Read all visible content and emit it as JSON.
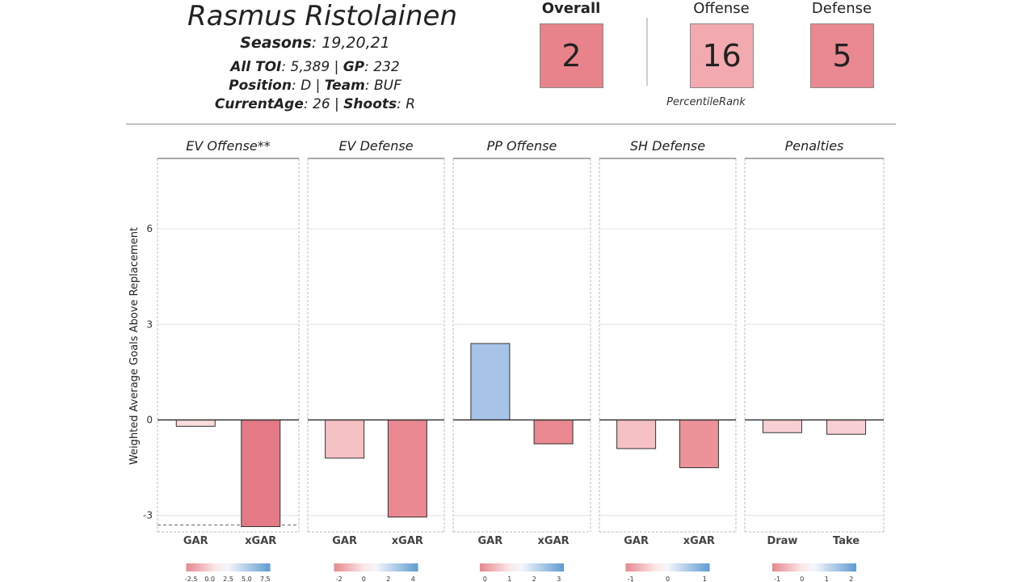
{
  "player": {
    "name": "Rasmus Ristolainen",
    "seasons_label": "Seasons",
    "seasons": ": 19,20,21",
    "toi_label": "All TOI",
    "toi": ": 5,389 | ",
    "gp_label": "GP",
    "gp": ": 232",
    "position_label": "Position",
    "position": ": D | ",
    "team_label": "Team",
    "team": ": BUF",
    "age_label": "CurrentAge",
    "age": ": 26 | ",
    "shoots_label": "Shoots",
    "shoots": ": R"
  },
  "ranks": {
    "overall_label": "Overall",
    "overall": "2",
    "overall_color": "#e8838c",
    "offense_label": "Offense",
    "offense": "16",
    "offense_color": "#f2aab0",
    "defense_label": "Defense",
    "defense": "5",
    "defense_color": "#e98890",
    "percentile_label": "PercentileRank"
  },
  "chart_data": {
    "type": "bar",
    "ylabel": "Weighted Average Goals Above Replacement",
    "ylim": [
      -3.5,
      8
    ],
    "yticks": [
      6,
      3,
      0,
      -3
    ],
    "grid": true,
    "panels": [
      {
        "title": "EV Offense**",
        "categories": [
          "GAR",
          "xGAR"
        ],
        "values": [
          -0.2,
          -3.35
        ],
        "colors": [
          "#f9dcdc",
          "#e37a85"
        ],
        "legend_ticks": [
          "-2.5",
          "0.0",
          "2.5",
          "5.0",
          "7.5"
        ],
        "reference_line": -3.3
      },
      {
        "title": "EV Defense",
        "categories": [
          "GAR",
          "xGAR"
        ],
        "values": [
          -1.2,
          -3.05
        ],
        "colors": [
          "#f5c1c5",
          "#e98890"
        ],
        "legend_ticks": [
          "-2",
          "0",
          "2",
          "4"
        ]
      },
      {
        "title": "PP Offense",
        "categories": [
          "GAR",
          "xGAR"
        ],
        "values": [
          2.4,
          -0.75
        ],
        "colors": [
          "#a7c3e7",
          "#e98890"
        ],
        "legend_ticks": [
          "0",
          "1",
          "2",
          "3"
        ]
      },
      {
        "title": "SH Defense",
        "categories": [
          "GAR",
          "xGAR"
        ],
        "values": [
          -0.9,
          -1.5
        ],
        "colors": [
          "#f5c1c5",
          "#ec9299"
        ],
        "legend_ticks": [
          "-1",
          "0",
          "1"
        ]
      },
      {
        "title": "Penalties",
        "categories": [
          "Draw",
          "Take"
        ],
        "values": [
          -0.4,
          -0.45
        ],
        "colors": [
          "#f7d0d3",
          "#f7d0d3"
        ],
        "legend_ticks": [
          "-1",
          "0",
          "1",
          "2"
        ]
      }
    ]
  }
}
